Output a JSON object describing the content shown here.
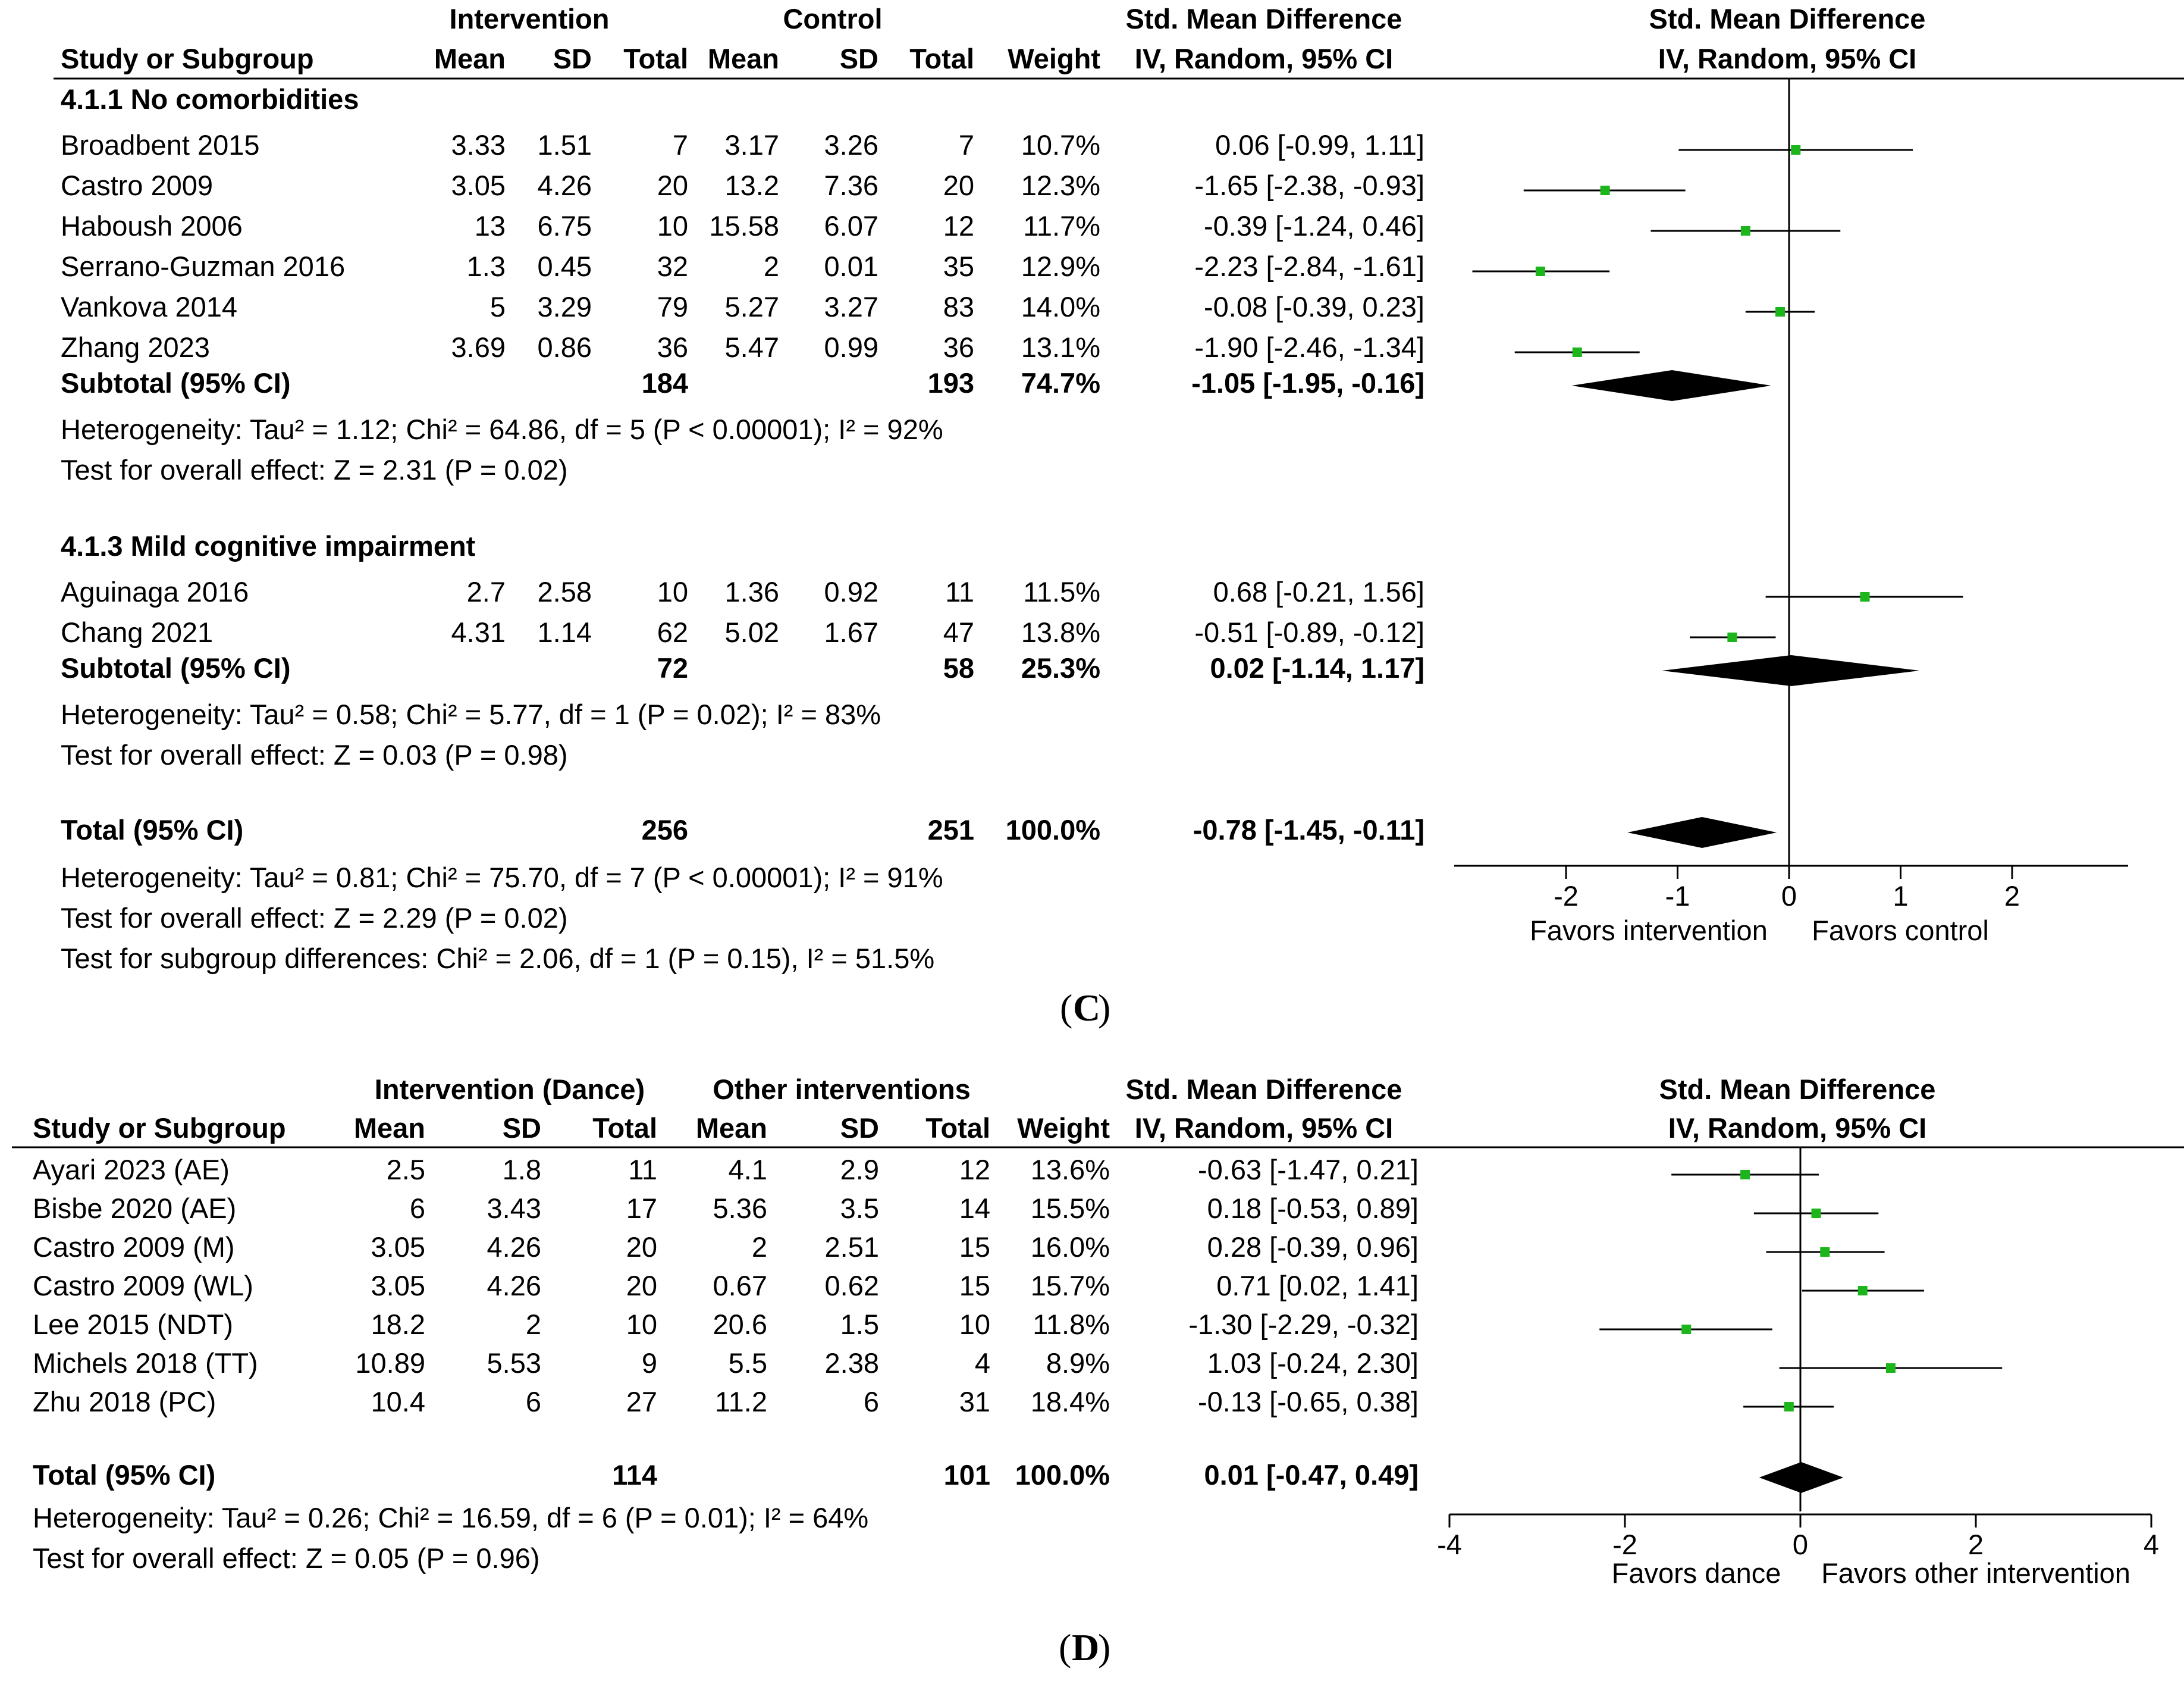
{
  "chart_data": [
    {
      "type": "forest",
      "caption_letter": "C",
      "header": {
        "group1": "Intervention",
        "group2": "Control",
        "effect_col": "Std. Mean Difference",
        "effect_sub": "IV, Random, 95% CI",
        "plot_title": "Std. Mean Difference",
        "plot_sub": "IV, Random, 95% CI",
        "study_col": "Study or Subgroup",
        "mean1": "Mean",
        "sd1": "SD",
        "total1": "Total",
        "mean2": "Mean",
        "sd2": "SD",
        "total2": "Total",
        "weight": "Weight"
      },
      "x_axis": {
        "ticks": [
          -2,
          -1,
          0,
          1,
          2
        ],
        "tick_labels": [
          "-2",
          "-1",
          "0",
          "1",
          "2"
        ],
        "range": [
          -3,
          3
        ],
        "favors_left": "Favors intervention",
        "favors_right": "Favors control"
      },
      "subgroups": [
        {
          "title": "4.1.1 No comorbidities",
          "studies": [
            {
              "name": "Broadbent 2015",
              "mean1": "3.33",
              "sd1": "1.51",
              "total1": "7",
              "mean2": "3.17",
              "sd2": "3.26",
              "total2": "7",
              "weight": "10.7%",
              "ci_text": "0.06 [-0.99, 1.11]",
              "est": 0.06,
              "lo": -0.99,
              "hi": 1.11
            },
            {
              "name": "Castro 2009",
              "mean1": "3.05",
              "sd1": "4.26",
              "total1": "20",
              "mean2": "13.2",
              "sd2": "7.36",
              "total2": "20",
              "weight": "12.3%",
              "ci_text": "-1.65 [-2.38, -0.93]",
              "est": -1.65,
              "lo": -2.38,
              "hi": -0.93
            },
            {
              "name": "Haboush 2006",
              "mean1": "13",
              "sd1": "6.75",
              "total1": "10",
              "mean2": "15.58",
              "sd2": "6.07",
              "total2": "12",
              "weight": "11.7%",
              "ci_text": "-0.39 [-1.24, 0.46]",
              "est": -0.39,
              "lo": -1.24,
              "hi": 0.46
            },
            {
              "name": "Serrano-Guzman 2016",
              "mean1": "1.3",
              "sd1": "0.45",
              "total1": "32",
              "mean2": "2",
              "sd2": "0.01",
              "total2": "35",
              "weight": "12.9%",
              "ci_text": "-2.23 [-2.84, -1.61]",
              "est": -2.23,
              "lo": -2.84,
              "hi": -1.61
            },
            {
              "name": "Vankova 2014",
              "mean1": "5",
              "sd1": "3.29",
              "total1": "79",
              "mean2": "5.27",
              "sd2": "3.27",
              "total2": "83",
              "weight": "14.0%",
              "ci_text": "-0.08 [-0.39, 0.23]",
              "est": -0.08,
              "lo": -0.39,
              "hi": 0.23
            },
            {
              "name": "Zhang 2023",
              "mean1": "3.69",
              "sd1": "0.86",
              "total1": "36",
              "mean2": "5.47",
              "sd2": "0.99",
              "total2": "36",
              "weight": "13.1%",
              "ci_text": "-1.90 [-2.46, -1.34]",
              "est": -1.9,
              "lo": -2.46,
              "hi": -1.34
            }
          ],
          "subtotal": {
            "label": "Subtotal (95% CI)",
            "total1": "184",
            "total2": "193",
            "weight": "74.7%",
            "ci_text": "-1.05 [-1.95, -0.16]",
            "est": -1.05,
            "lo": -1.95,
            "hi": -0.16
          },
          "heterogeneity": "Heterogeneity: Tau² = 1.12; Chi² = 64.86, df = 5 (P < 0.00001); I² = 92%",
          "overall": "Test for overall effect: Z = 2.31 (P = 0.02)"
        },
        {
          "title": "4.1.3 Mild cognitive impairment",
          "studies": [
            {
              "name": "Aguinaga 2016",
              "mean1": "2.7",
              "sd1": "2.58",
              "total1": "10",
              "mean2": "1.36",
              "sd2": "0.92",
              "total2": "11",
              "weight": "11.5%",
              "ci_text": "0.68 [-0.21, 1.56]",
              "est": 0.68,
              "lo": -0.21,
              "hi": 1.56
            },
            {
              "name": "Chang 2021",
              "mean1": "4.31",
              "sd1": "1.14",
              "total1": "62",
              "mean2": "5.02",
              "sd2": "1.67",
              "total2": "47",
              "weight": "13.8%",
              "ci_text": "-0.51 [-0.89, -0.12]",
              "est": -0.51,
              "lo": -0.89,
              "hi": -0.12
            }
          ],
          "subtotal": {
            "label": "Subtotal (95% CI)",
            "total1": "72",
            "total2": "58",
            "weight": "25.3%",
            "ci_text": "0.02 [-1.14, 1.17]",
            "est": 0.02,
            "lo": -1.14,
            "hi": 1.17
          },
          "heterogeneity": "Heterogeneity: Tau² = 0.58; Chi² = 5.77, df = 1 (P = 0.02); I² = 83%",
          "overall": "Test for overall effect: Z = 0.03 (P = 0.98)"
        }
      ],
      "total": {
        "label": "Total (95% CI)",
        "total1": "256",
        "total2": "251",
        "weight": "100.0%",
        "ci_text": "-0.78 [-1.45, -0.11]",
        "est": -0.78,
        "lo": -1.45,
        "hi": -0.11
      },
      "footer": [
        "Heterogeneity: Tau² = 0.81; Chi² = 75.70, df = 7 (P < 0.00001); I² = 91%",
        "Test for overall effect: Z = 2.29 (P = 0.02)",
        "Test for subgroup differences: Chi² = 2.06, df = 1 (P = 0.15), I² = 51.5%"
      ]
    },
    {
      "type": "forest",
      "caption_letter": "D",
      "header": {
        "group1": "Intervention (Dance)",
        "group2": "Other interventions",
        "effect_col": "Std. Mean Difference",
        "effect_sub": "IV, Random, 95% CI",
        "plot_title": "Std. Mean Difference",
        "plot_sub": "IV, Random, 95% CI",
        "study_col": "Study or Subgroup",
        "mean1": "Mean",
        "sd1": "SD",
        "total1": "Total",
        "mean2": "Mean",
        "sd2": "SD",
        "total2": "Total",
        "weight": "Weight"
      },
      "x_axis": {
        "ticks": [
          -4,
          -2,
          0,
          2,
          4
        ],
        "tick_labels": [
          "-4",
          "-2",
          "0",
          "2",
          "4"
        ],
        "range": [
          -4,
          4
        ],
        "favors_left": "Favors dance",
        "favors_right": "Favors other intervention"
      },
      "studies": [
        {
          "name": "Ayari 2023 (AE)",
          "mean1": "2.5",
          "sd1": "1.8",
          "total1": "11",
          "mean2": "4.1",
          "sd2": "2.9",
          "total2": "12",
          "weight": "13.6%",
          "ci_text": "-0.63 [-1.47, 0.21]",
          "est": -0.63,
          "lo": -1.47,
          "hi": 0.21
        },
        {
          "name": "Bisbe 2020 (AE)",
          "mean1": "6",
          "sd1": "3.43",
          "total1": "17",
          "mean2": "5.36",
          "sd2": "3.5",
          "total2": "14",
          "weight": "15.5%",
          "ci_text": "0.18 [-0.53, 0.89]",
          "est": 0.18,
          "lo": -0.53,
          "hi": 0.89
        },
        {
          "name": "Castro 2009 (M)",
          "mean1": "3.05",
          "sd1": "4.26",
          "total1": "20",
          "mean2": "2",
          "sd2": "2.51",
          "total2": "15",
          "weight": "16.0%",
          "ci_text": "0.28 [-0.39, 0.96]",
          "est": 0.28,
          "lo": -0.39,
          "hi": 0.96
        },
        {
          "name": "Castro 2009 (WL)",
          "mean1": "3.05",
          "sd1": "4.26",
          "total1": "20",
          "mean2": "0.67",
          "sd2": "0.62",
          "total2": "15",
          "weight": "15.7%",
          "ci_text": "0.71 [0.02, 1.41]",
          "est": 0.71,
          "lo": 0.02,
          "hi": 1.41
        },
        {
          "name": "Lee 2015 (NDT)",
          "mean1": "18.2",
          "sd1": "2",
          "total1": "10",
          "mean2": "20.6",
          "sd2": "1.5",
          "total2": "10",
          "weight": "11.8%",
          "ci_text": "-1.30 [-2.29, -0.32]",
          "est": -1.3,
          "lo": -2.29,
          "hi": -0.32
        },
        {
          "name": "Michels 2018 (TT)",
          "mean1": "10.89",
          "sd1": "5.53",
          "total1": "9",
          "mean2": "5.5",
          "sd2": "2.38",
          "total2": "4",
          "weight": "8.9%",
          "ci_text": "1.03 [-0.24, 2.30]",
          "est": 1.03,
          "lo": -0.24,
          "hi": 2.3
        },
        {
          "name": "Zhu 2018 (PC)",
          "mean1": "10.4",
          "sd1": "6",
          "total1": "27",
          "mean2": "11.2",
          "sd2": "6",
          "total2": "31",
          "weight": "18.4%",
          "ci_text": "-0.13 [-0.65, 0.38]",
          "est": -0.13,
          "lo": -0.65,
          "hi": 0.38
        }
      ],
      "total": {
        "label": "Total (95% CI)",
        "total1": "114",
        "total2": "101",
        "weight": "100.0%",
        "ci_text": "0.01 [-0.47, 0.49]",
        "est": 0.01,
        "lo": -0.47,
        "hi": 0.49
      },
      "footer": [
        "Heterogeneity: Tau² = 0.26; Chi² = 16.59, df = 6 (P = 0.01); I² = 64%",
        "Test for overall effect: Z = 0.05 (P = 0.96)"
      ]
    }
  ],
  "colors": {
    "marker": "#1cb51c",
    "diamond": "#000000",
    "line": "#000000"
  }
}
